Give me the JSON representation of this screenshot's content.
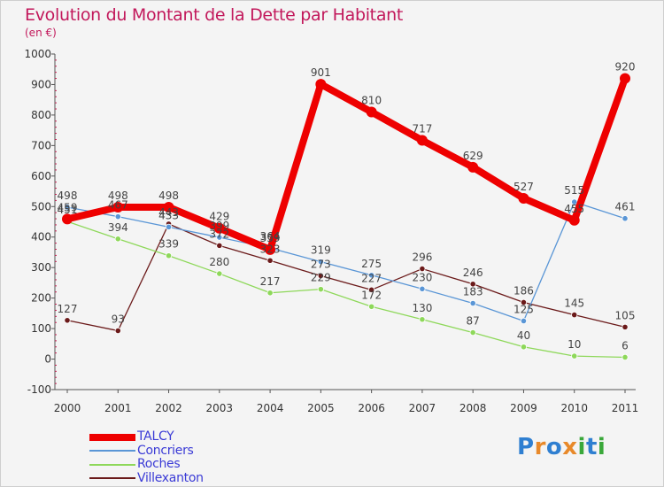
{
  "title": "Evolution du Montant de la Dette par Habitant",
  "subtitle": "(en €)",
  "logo": {
    "text": "Proxiti",
    "letter_colors": [
      "#2f7fd1",
      "#e8892a",
      "#2f7fd1",
      "#e8892a",
      "#3aa83a",
      "#2f7fd1",
      "#3aa83a"
    ]
  },
  "chart_data": {
    "type": "line",
    "title": "Evolution du Montant de la Dette par Habitant",
    "subtitle": "(en €)",
    "xlabel": "",
    "ylabel": "",
    "x": [
      "2000",
      "2001",
      "2002",
      "2003",
      "2004",
      "2005",
      "2006",
      "2007",
      "2008",
      "2009",
      "2010",
      "2011"
    ],
    "ylim": [
      -100,
      1000
    ],
    "yticks": [
      -100,
      0,
      100,
      200,
      300,
      400,
      500,
      600,
      700,
      800,
      900,
      1000
    ],
    "grid": false,
    "legend_position": "bottom-left",
    "series": [
      {
        "name": "TALCY",
        "color": "#ee0000",
        "values": [
          459,
          498,
          498,
          429,
          359,
          901,
          810,
          717,
          629,
          527,
          455,
          920
        ]
      },
      {
        "name": "Concriers",
        "color": "#5a96d6",
        "values": [
          498,
          467,
          433,
          399,
          364,
          319,
          275,
          230,
          183,
          125,
          515,
          461
        ]
      },
      {
        "name": "Roches",
        "color": "#8ed85a",
        "values": [
          451,
          394,
          339,
          280,
          217,
          229,
          172,
          130,
          87,
          40,
          10,
          6
        ]
      },
      {
        "name": "Villexanton",
        "color": "#6b1a1a",
        "values": [
          127,
          93,
          443,
          372,
          323,
          273,
          227,
          296,
          246,
          186,
          145,
          105
        ]
      }
    ]
  }
}
